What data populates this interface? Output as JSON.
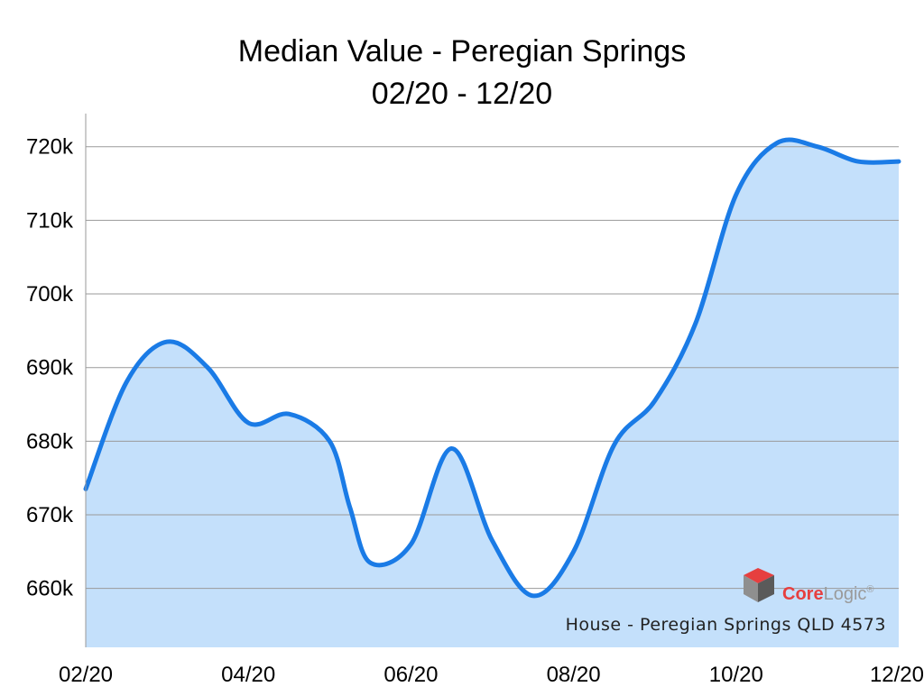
{
  "chart_data": {
    "type": "area",
    "title": "Median Value - Peregian Springs",
    "subtitle": "02/20 - 12/20",
    "xlabel": "",
    "ylabel": "",
    "x_tick_labels": [
      "02/20",
      "04/20",
      "06/20",
      "08/20",
      "10/20",
      "12/20"
    ],
    "y_tick_labels": [
      "660k",
      "670k",
      "680k",
      "690k",
      "700k",
      "710k",
      "720k"
    ],
    "y_ticks": [
      660000,
      670000,
      680000,
      690000,
      700000,
      710000,
      720000
    ],
    "ylim": [
      652000,
      724500
    ],
    "xlim": [
      0,
      10
    ],
    "grid": true,
    "legend": "none",
    "series": [
      {
        "x": [
          0,
          0.5,
          1.0,
          1.5,
          2.0,
          2.5,
          3.0,
          3.25,
          3.5,
          4.0,
          4.5,
          5.0,
          5.5,
          6.0,
          6.5,
          7.0,
          7.5,
          8.0,
          8.5,
          9.0,
          9.5,
          10.0
        ],
        "values": [
          673500,
          688000,
          693500,
          690000,
          682500,
          683700,
          680000,
          671000,
          663500,
          666000,
          679000,
          666500,
          659000,
          665000,
          679500,
          685500,
          696000,
          713500,
          720500,
          720000,
          718000,
          718000
        ]
      }
    ],
    "colors": {
      "line": "#1a7be6",
      "fill": "#c4e0fb",
      "grid": "#9a9a9a",
      "axis": "#9a9a9a"
    }
  },
  "annotations": {
    "logo_text_core": "Core",
    "logo_text_logic": "Logic",
    "logo_registered": "®",
    "footnote": "House - Peregian Springs QLD 4573"
  }
}
